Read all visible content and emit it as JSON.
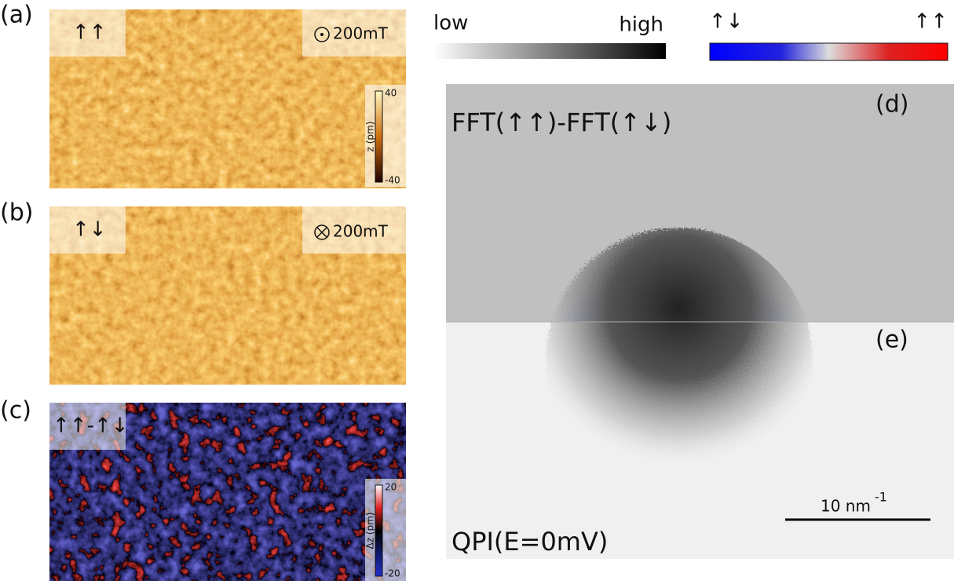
{
  "panels": [
    {
      "label": "(a)",
      "inset_left": "↑↑",
      "inset_right": "200mT",
      "colorbar": {
        "max": "40",
        "min": "-40",
        "unit": "z (pm)"
      }
    },
    {
      "label": "(b)",
      "inset_left": "↑↓",
      "inset_right": "200mT"
    },
    {
      "label": "(c)",
      "inset_left": "↑↑-↑↓",
      "colorbar": {
        "max": "20",
        "min": "-20",
        "unit": "Δz (pm)"
      }
    },
    {
      "label": "(d)",
      "caption": "FFT(↑↑)-FFT(↑↓)"
    },
    {
      "label": "(e)",
      "caption": "QPI(E=0mV)",
      "scale_bar": {
        "text": "10 nm",
        "exponent": "-1"
      }
    }
  ],
  "gray_scale": {
    "low": "low",
    "high": "high"
  },
  "spin_scale": {
    "left": "↑↓",
    "right": "↑↑"
  }
}
